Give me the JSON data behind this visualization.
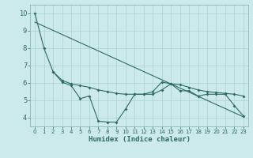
{
  "xlabel": "Humidex (Indice chaleur)",
  "bg_color": "#cceae7",
  "line_color": "#2d6b63",
  "grid_color": "#aad4d0",
  "xlim": [
    -0.5,
    23.5
  ],
  "ylim": [
    3.5,
    10.5
  ],
  "xticks": [
    0,
    1,
    2,
    3,
    4,
    5,
    6,
    7,
    8,
    9,
    10,
    11,
    12,
    13,
    14,
    15,
    16,
    17,
    18,
    19,
    20,
    21,
    22,
    23
  ],
  "yticks": [
    4,
    5,
    6,
    7,
    8,
    9,
    10
  ],
  "line1_x": [
    0,
    1,
    2,
    3,
    4,
    5,
    6,
    7,
    8,
    9,
    10,
    11,
    12,
    13,
    14,
    15,
    16,
    17,
    18,
    19,
    20,
    21,
    22,
    23
  ],
  "line1_y": [
    10.0,
    8.0,
    6.65,
    6.05,
    5.85,
    5.1,
    5.25,
    3.8,
    3.75,
    3.75,
    4.5,
    5.35,
    5.35,
    5.5,
    6.05,
    5.95,
    5.55,
    5.55,
    5.25,
    5.35,
    5.35,
    5.35,
    4.7,
    4.1
  ],
  "line2_x": [
    2,
    3,
    4,
    5,
    6,
    7,
    8,
    9,
    10,
    11,
    12,
    13,
    14,
    15,
    16,
    17,
    18,
    19,
    20,
    21,
    22,
    23
  ],
  "line2_y": [
    6.65,
    6.15,
    5.95,
    5.85,
    5.75,
    5.6,
    5.5,
    5.4,
    5.35,
    5.35,
    5.35,
    5.35,
    5.6,
    5.95,
    5.9,
    5.75,
    5.6,
    5.5,
    5.45,
    5.4,
    5.35,
    5.25
  ],
  "line3_x": [
    0,
    23
  ],
  "line3_y": [
    9.5,
    4.05
  ]
}
